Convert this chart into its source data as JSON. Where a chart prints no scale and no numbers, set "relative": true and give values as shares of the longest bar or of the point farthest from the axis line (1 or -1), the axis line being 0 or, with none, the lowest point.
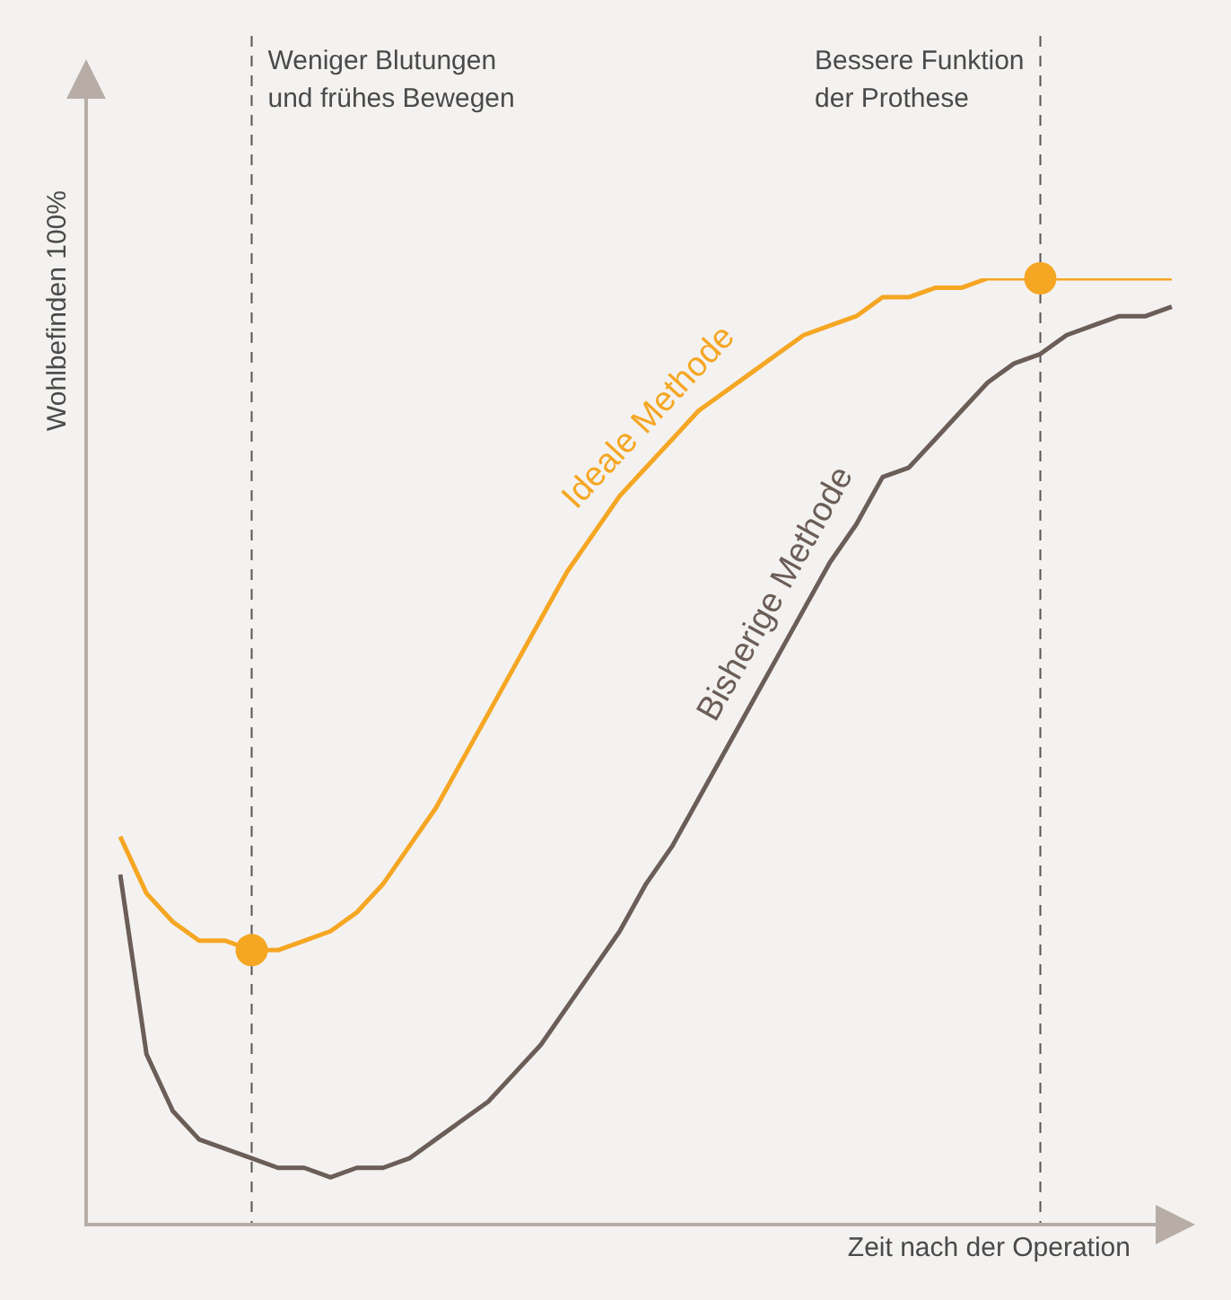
{
  "chart_data": {
    "type": "line",
    "relative": true,
    "xlabel": "Zeit nach der Operation",
    "ylabel": "Wohlbefinden 100%",
    "legend": false,
    "categories": [
      null,
      null,
      null,
      null,
      null,
      null,
      null,
      null,
      null,
      null,
      null,
      null,
      null,
      null,
      null,
      null,
      null,
      null,
      null,
      null,
      null,
      null,
      null,
      null,
      null,
      null,
      null,
      null,
      null,
      null,
      null,
      null,
      null,
      null,
      null,
      null,
      null,
      null,
      null,
      null,
      null
    ],
    "series": [
      {
        "name": "Ideale Methode",
        "color": "#f5a623",
        "values": [
          0.41,
          0.35,
          0.32,
          0.3,
          0.3,
          0.29,
          0.29,
          0.3,
          0.31,
          0.33,
          0.36,
          0.4,
          0.44,
          0.49,
          0.54,
          0.59,
          0.64,
          0.69,
          0.73,
          0.77,
          0.8,
          0.83,
          0.86,
          0.88,
          0.9,
          0.92,
          0.94,
          0.95,
          0.96,
          0.98,
          0.98,
          0.99,
          0.99,
          1.0,
          1.0,
          1.0,
          1.0,
          1.0,
          1.0,
          1.0,
          1.0
        ]
      },
      {
        "name": "Bisherige Methode",
        "color": "#6b5d57",
        "values": [
          0.37,
          0.18,
          0.12,
          0.09,
          0.08,
          0.07,
          0.06,
          0.06,
          0.05,
          0.06,
          0.06,
          0.07,
          0.09,
          0.11,
          0.13,
          0.16,
          0.19,
          0.23,
          0.27,
          0.31,
          0.36,
          0.4,
          0.45,
          0.5,
          0.55,
          0.6,
          0.65,
          0.7,
          0.74,
          0.79,
          0.8,
          0.83,
          0.86,
          0.89,
          0.91,
          0.92,
          0.94,
          0.95,
          0.96,
          0.96,
          0.97
        ]
      }
    ],
    "annotations": [
      "Weniger Blutungen\nund frühes Bewegen",
      "Bessere Funktion\nder Prothese"
    ]
  }
}
